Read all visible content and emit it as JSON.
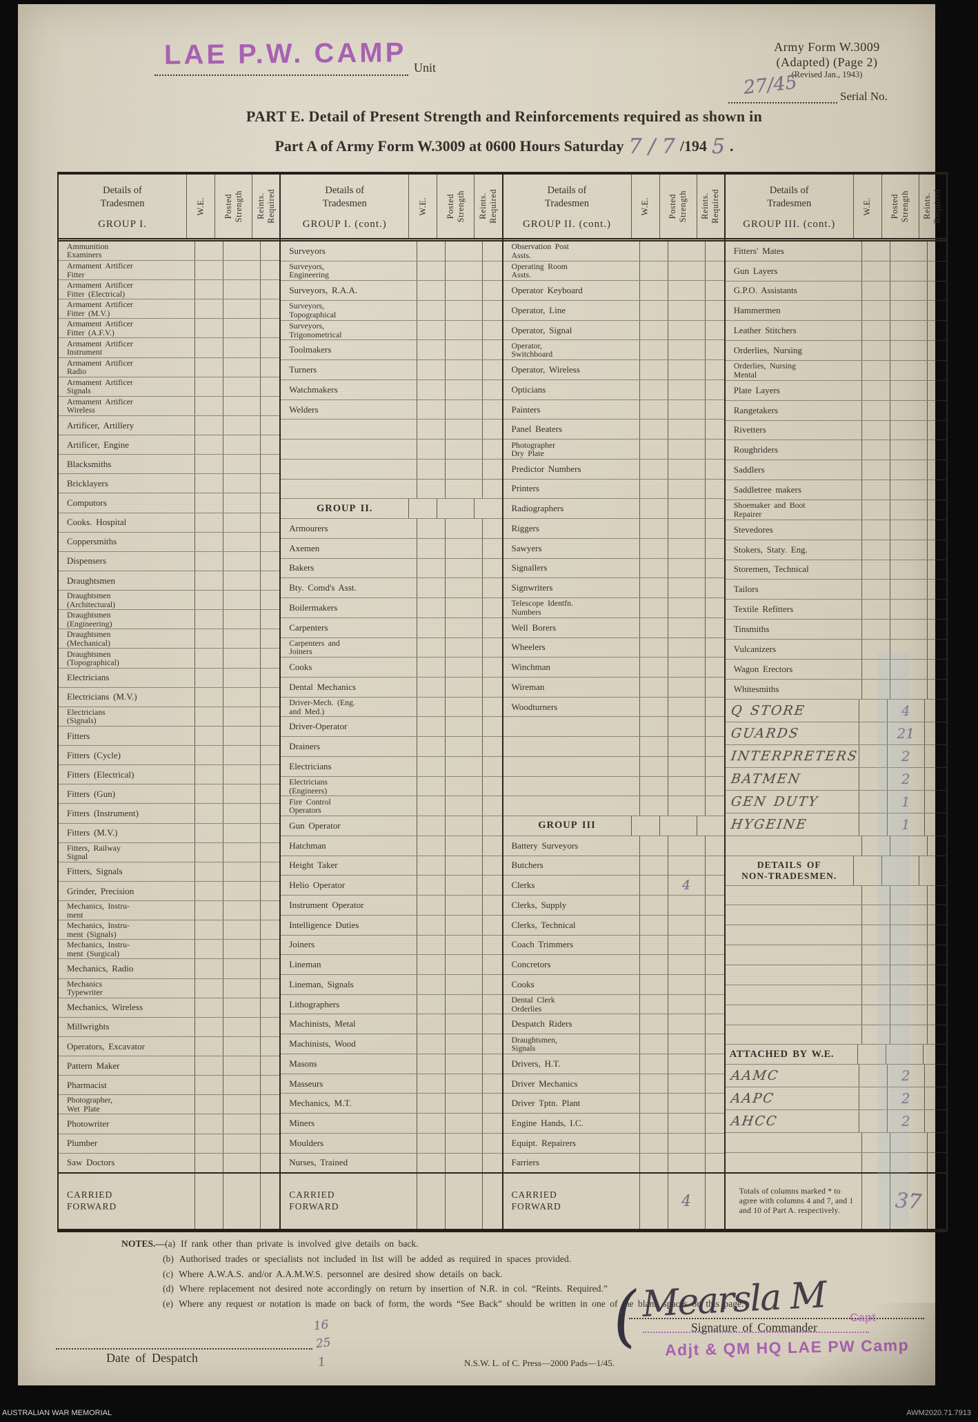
{
  "header": {
    "unit_stamp": "LAE P.W. CAMP",
    "unit_label": "Unit",
    "form_ref_line1": "Army Form W.3009",
    "form_ref_line2": "(Adapted) (Page 2)",
    "form_ref_line3": "(Revised Jan., 1943)",
    "serial_handwritten": "27/45",
    "serial_label": "Serial No.",
    "title_line1": "PART E.  Detail of Present Strength and Reinforcements required as shown in",
    "title_line2_prefix": "Part A of Army Form W.3009 at 0600 Hours Saturday",
    "title_date_handwritten": "7 / 7",
    "title_year_printed": "/194",
    "title_year_handwritten": "5",
    "title_period": "."
  },
  "table": {
    "details_line1": "Details of",
    "details_line2": "Tradesmen",
    "we": "W.E.",
    "posted": "Posted\nStrength",
    "reints": "Reints.\nRequired",
    "groups": [
      {
        "title": "GROUP I.",
        "rows": [
          {
            "label": "Ammunition\nExaminers"
          },
          {
            "label": "Armament Artificer\nFitter"
          },
          {
            "label": "Armament Artificer\nFitter (Electrical)"
          },
          {
            "label": "Armament Artificer\nFitter (M.V.)"
          },
          {
            "label": "Armament Artificer\nFitter (A.F.V.)"
          },
          {
            "label": "Armament Artificer\nInstrument"
          },
          {
            "label": "Armament Artificer\nRadio"
          },
          {
            "label": "Armament Artificer\nSignals"
          },
          {
            "label": "Armament Artificer\nWireless"
          },
          {
            "label": "Artificer, Artillery"
          },
          {
            "label": "Artificer, Engine"
          },
          {
            "label": "Blacksmiths"
          },
          {
            "label": "Bricklayers"
          },
          {
            "label": "Computors"
          },
          {
            "label": "Cooks. Hospital"
          },
          {
            "label": "Coppersmiths"
          },
          {
            "label": "Dispensers"
          },
          {
            "label": "Draughtsmen"
          },
          {
            "label": "Draughtsmen\n(Architectural)"
          },
          {
            "label": "Draughtsmen\n(Engineering)"
          },
          {
            "label": "Draughtsmen\n(Mechanical)"
          },
          {
            "label": "Draughtsmen\n(Topographical)"
          },
          {
            "label": "Electricians"
          },
          {
            "label": "Electricians (M.V.)"
          },
          {
            "label": "Electricians\n  (Signals)"
          },
          {
            "label": "Fitters"
          },
          {
            "label": "Fitters (Cycle)"
          },
          {
            "label": "Fitters (Electrical)"
          },
          {
            "label": "Fitters (Gun)"
          },
          {
            "label": "Fitters (Instrument)"
          },
          {
            "label": "Fitters (M.V.)"
          },
          {
            "label": "Fitters, Railway\nSignal"
          },
          {
            "label": "Fitters, Signals"
          },
          {
            "label": "Grinder, Precision"
          },
          {
            "label": "Mechanics, Instru-\nment"
          },
          {
            "label": "Mechanics, Instru-\nment (Signals)"
          },
          {
            "label": "Mechanics, Instru-\nment (Surgical)"
          },
          {
            "label": "Mechanics, Radio"
          },
          {
            "label": "Mechanics\nTypewriter"
          },
          {
            "label": "Mechanics, Wireless"
          },
          {
            "label": "Millwrights"
          },
          {
            "label": "Operators, Excavator"
          },
          {
            "label": "Pattern Maker"
          },
          {
            "label": "Pharmacist"
          },
          {
            "label": "Photographer,\nWet Plate"
          },
          {
            "label": "Photowriter"
          },
          {
            "label": "Plumber"
          },
          {
            "label": "Saw Doctors"
          }
        ],
        "cf": {
          "label": "CARRIED FORWARD"
        }
      },
      {
        "title": "GROUP I. (cont.)",
        "rows": [
          {
            "label": "Surveyors"
          },
          {
            "label": "Surveyors,\nEngineering"
          },
          {
            "label": "Surveyors, R.A.A."
          },
          {
            "label": "Surveyors,\nTopographical"
          },
          {
            "label": "Surveyors,\nTrigonometrical"
          },
          {
            "label": "Toolmakers"
          },
          {
            "label": "Turners"
          },
          {
            "label": "Watchmakers"
          },
          {
            "label": "Welders"
          },
          {
            "label": ""
          },
          {
            "label": ""
          },
          {
            "label": ""
          },
          {
            "label": ""
          },
          {
            "label": "GROUP II.",
            "type": "ghdr"
          },
          {
            "label": "Armourers"
          },
          {
            "label": "Axemen"
          },
          {
            "label": "Bakers"
          },
          {
            "label": "Bty. Comd's Asst."
          },
          {
            "label": "Boilermakers"
          },
          {
            "label": "Carpenters"
          },
          {
            "label": "Carpenters and\nJoiners"
          },
          {
            "label": "Cooks"
          },
          {
            "label": "Dental Mechanics"
          },
          {
            "label": "Driver-Mech. (Eng.\nand Med.)"
          },
          {
            "label": "Driver-Operator"
          },
          {
            "label": "Drainers"
          },
          {
            "label": "Electricians"
          },
          {
            "label": "Electricians\n(Engineers)"
          },
          {
            "label": "Fire Control\nOperators"
          },
          {
            "label": "Gun Operator"
          },
          {
            "label": "Hatchman"
          },
          {
            "label": "Height Taker"
          },
          {
            "label": "Helio Operator"
          },
          {
            "label": "Instrument Operator"
          },
          {
            "label": "Intelligence Duties"
          },
          {
            "label": "Joiners"
          },
          {
            "label": "Lineman"
          },
          {
            "label": "Lineman, Signals"
          },
          {
            "label": "Lithographers"
          },
          {
            "label": "Machinists, Metal"
          },
          {
            "label": "Machinists, Wood"
          },
          {
            "label": "Masons"
          },
          {
            "label": "Masseurs"
          },
          {
            "label": "Mechanics, M.T."
          },
          {
            "label": "Miners"
          },
          {
            "label": "Moulders"
          },
          {
            "label": "Nurses, Trained"
          }
        ],
        "cf": {
          "label": "CARRIED FORWARD"
        }
      },
      {
        "title": "GROUP II. (cont.)",
        "rows": [
          {
            "label": "Observation Post\nAssts."
          },
          {
            "label": "Operating Room\nAssts."
          },
          {
            "label": "Operator Keyboard"
          },
          {
            "label": "Operator, Line"
          },
          {
            "label": "Operator, Signal"
          },
          {
            "label": "Operator,\nSwitchboard"
          },
          {
            "label": "Operator, Wireless"
          },
          {
            "label": "Opticians"
          },
          {
            "label": "Painters"
          },
          {
            "label": "Panel Beaters"
          },
          {
            "label": "Photographer\nDry Plate"
          },
          {
            "label": "Predictor Numbers"
          },
          {
            "label": "Printers"
          },
          {
            "label": "Radiographers"
          },
          {
            "label": "Riggers"
          },
          {
            "label": "Sawyers"
          },
          {
            "label": "Signallers"
          },
          {
            "label": "Signwriters"
          },
          {
            "label": "Telescope Identfn.\nNumbers"
          },
          {
            "label": "Well Borers"
          },
          {
            "label": "Wheelers"
          },
          {
            "label": "Winchman"
          },
          {
            "label": "Wireman"
          },
          {
            "label": "Woodturners"
          },
          {
            "label": ""
          },
          {
            "label": ""
          },
          {
            "label": ""
          },
          {
            "label": ""
          },
          {
            "label": ""
          },
          {
            "label": "GROUP III",
            "type": "ghdr"
          },
          {
            "label": "Battery Surveyors"
          },
          {
            "label": "Butchers"
          },
          {
            "label": "Clerks",
            "ps": "4",
            "psclass": "clerks4"
          },
          {
            "label": "Clerks, Supply"
          },
          {
            "label": "Clerks, Technical"
          },
          {
            "label": "Coach Trimmers"
          },
          {
            "label": "Concretors"
          },
          {
            "label": "Cooks"
          },
          {
            "label": "Dental Clerk\nOrderlies"
          },
          {
            "label": "Despatch Riders"
          },
          {
            "label": "Draughtsmen,\nSignals"
          },
          {
            "label": "Drivers, H.T."
          },
          {
            "label": "Driver Mechanics"
          },
          {
            "label": "Driver Tptn. Plant"
          },
          {
            "label": "Engine Hands, I.C."
          },
          {
            "label": "Equipt. Repairers"
          },
          {
            "label": "Farriers"
          }
        ],
        "cf": {
          "label": "CARRIED FORWARD",
          "ps": "4",
          "psclass": "cf4"
        }
      },
      {
        "title": "GROUP III. (cont.)",
        "rows": [
          {
            "label": "Fitters' Mates"
          },
          {
            "label": "Gun Layers"
          },
          {
            "label": "G.P.O. Assistants"
          },
          {
            "label": "Hammermen"
          },
          {
            "label": "Leather Stitchers"
          },
          {
            "label": "Orderlies, Nursing"
          },
          {
            "label": "Orderlies, Nursing\nMental"
          },
          {
            "label": "Plate Layers"
          },
          {
            "label": "Rangetakers"
          },
          {
            "label": "Rivetters"
          },
          {
            "label": "Roughriders"
          },
          {
            "label": "Saddlers"
          },
          {
            "label": "Saddletree makers"
          },
          {
            "label": "Shoemaker and Boot\nRepairer"
          },
          {
            "label": "Stevedores"
          },
          {
            "label": "Stokers, Staty. Eng."
          },
          {
            "label": "Storemen, Technical"
          },
          {
            "label": "Tailors"
          },
          {
            "label": "Textile Refitters"
          },
          {
            "label": "Tinsmiths"
          },
          {
            "label": "Vulcanizers"
          },
          {
            "label": "Wagon Erectors"
          },
          {
            "label": "Whitesmiths"
          },
          {
            "label": "Q STORE",
            "hand": true,
            "ps": "4"
          },
          {
            "label": "GUARDS",
            "hand": true,
            "ps": "21"
          },
          {
            "label": "INTERPRETERS",
            "hand": true,
            "ps": "2"
          },
          {
            "label": "BATMEN",
            "hand": true,
            "ps": "2"
          },
          {
            "label": "GEN DUTY",
            "hand": true,
            "ps": "1"
          },
          {
            "label": "HYGEINE",
            "hand": true,
            "ps": "1"
          },
          {
            "label": ""
          },
          {
            "label": "DETAILS OF\nNON-TRADESMEN.",
            "type": "ghdr"
          },
          {
            "label": ""
          },
          {
            "label": ""
          },
          {
            "label": ""
          },
          {
            "label": ""
          },
          {
            "label": ""
          },
          {
            "label": ""
          },
          {
            "label": ""
          },
          {
            "label": ""
          },
          {
            "label": "ATTACHED BY W.E.",
            "type": "ghdr2"
          },
          {
            "label": "AAMC",
            "hand": true,
            "ps": "2"
          },
          {
            "label": "AAPC",
            "hand": true,
            "ps": "2"
          },
          {
            "label": "AHCC",
            "hand": true,
            "ps": "2"
          },
          {
            "label": ""
          },
          {
            "label": ""
          }
        ],
        "cf": {
          "note": "Totals of columns marked * to agree with columns 4 and 7, and 1 and 10 of Part A. respectively.",
          "ps": "37",
          "psclass": "cf37"
        }
      }
    ]
  },
  "notes": {
    "lead": "NOTES.—",
    "items": [
      {
        "tag": "(a)",
        "text": "If rank other than private is involved give details on back."
      },
      {
        "tag": "(b)",
        "text": "Authorised trades or specialists not included in list will be added as required in spaces provided."
      },
      {
        "tag": "(c)",
        "text": "Where A.W.A.S. and/or A.A.M.W.S. personnel are desired show details on back."
      },
      {
        "tag": "(d)",
        "text": "Where replacement not desired note accordingly on return by insertion of N.R. in col. “Reints. Required.”"
      },
      {
        "tag": "(e)",
        "text": "Where any request or notation is made on back of form, the words “See Back” should be written in one of the blank spaces on this page."
      }
    ]
  },
  "footer": {
    "date_label": "Date of Despatch",
    "despatch_scribble": "16\n25\n1",
    "press_note": "N.S.W.  L.  of  C.  Press—2000  Pads—1/45.",
    "signature_paren": "(",
    "signature_scrawl": "Mearsla M",
    "signature_label": "Signature of Commander",
    "signature_rank_stamp": "Capt",
    "signature_unit_stamp": "Adjt & QM HQ LAE PW Camp"
  },
  "archive": {
    "left": "AUSTRALIAN WAR MEMORIAL",
    "right": "AWM2020.71.7913"
  },
  "colors": {
    "stamp_purple": "#a052ae",
    "pencil_gray": "#7c6d85",
    "ink": "#33302a",
    "paper": "#d8d1bf"
  }
}
